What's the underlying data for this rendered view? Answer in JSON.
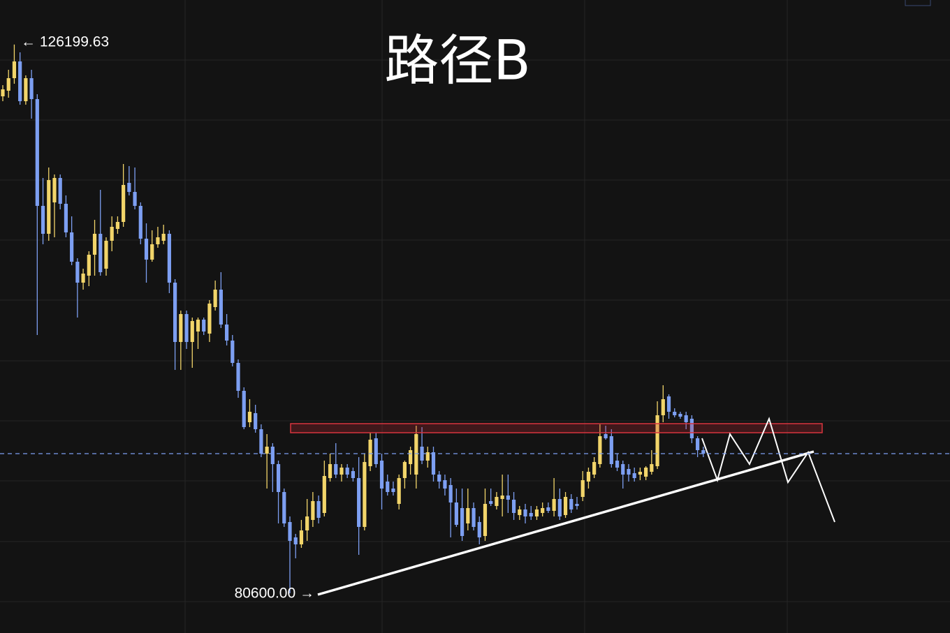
{
  "chart_data": {
    "type": "candlestick",
    "title": "路径B",
    "max_label": "← 126199.63",
    "min_label": "80600.00 →",
    "up_color": "#f2d56a",
    "down_color": "#7d9ff2",
    "ylim": [
      77294,
      129900
    ],
    "ohlc": [
      [
        121896,
        122824,
        121490,
        122476
      ],
      [
        122360,
        124100,
        121780,
        123404
      ],
      [
        123404,
        126199.63,
        122940,
        124796
      ],
      [
        124796,
        125550,
        121200,
        121490
      ],
      [
        121490,
        123636,
        121200,
        123404
      ],
      [
        123404,
        124100,
        120040,
        121664
      ],
      [
        121664,
        122070,
        102060,
        112790
      ],
      [
        112790,
        115110,
        109600,
        110470
      ],
      [
        110470,
        115980,
        109890,
        114936
      ],
      [
        113080,
        115400,
        110180,
        115110
      ],
      [
        115110,
        115400,
        112500,
        112964
      ],
      [
        112964,
        113660,
        110180,
        110586
      ],
      [
        110586,
        111920,
        107860,
        108150
      ],
      [
        108150,
        108440,
        103510,
        106410
      ],
      [
        106410,
        107570,
        105830,
        107164
      ],
      [
        106990,
        109020,
        106120,
        108730
      ],
      [
        108730,
        111630,
        106990,
        110470
      ],
      [
        110470,
        114124,
        106990,
        107280
      ],
      [
        107570,
        110180,
        106990,
        109890
      ],
      [
        109890,
        111920,
        109020,
        111050
      ],
      [
        110876,
        111920,
        110470,
        111456
      ],
      [
        111456,
        116270,
        111050,
        114530
      ],
      [
        114704,
        116096,
        113660,
        113950
      ],
      [
        113950,
        115980,
        112500,
        112790
      ],
      [
        112790,
        113080,
        109600,
        110064
      ],
      [
        110064,
        111340,
        106410,
        108324
      ],
      [
        108324,
        110760,
        108150,
        109600
      ],
      [
        109600,
        111050,
        109310,
        110180
      ],
      [
        109890,
        111224,
        109600,
        110470
      ],
      [
        110470,
        110760,
        105540,
        106410
      ],
      [
        106410,
        106700,
        99160,
        101480
      ],
      [
        101480,
        104090,
        99160,
        103800
      ],
      [
        103800,
        104090,
        100900,
        101480
      ],
      [
        101480,
        103510,
        99334,
        103220
      ],
      [
        102350,
        103510,
        100900,
        103336
      ],
      [
        103336,
        103510,
        102060,
        102350
      ],
      [
        102176,
        104960,
        101480,
        104670
      ],
      [
        104380,
        106584,
        104090,
        105830
      ],
      [
        105830,
        107280,
        102640,
        102930
      ],
      [
        102930,
        103800,
        101190,
        101596
      ],
      [
        101596,
        102060,
        99450,
        99740
      ],
      [
        99740,
        100030,
        96840,
        97420
      ],
      [
        97420,
        97710,
        94230,
        94404
      ],
      [
        94810,
        96724,
        94404,
        95680
      ],
      [
        95564,
        96260,
        93940,
        94230
      ],
      [
        94230,
        94636,
        91910,
        92200
      ],
      [
        92200,
        93824,
        89300,
        92780
      ],
      [
        92780,
        93070,
        89010,
        91330
      ],
      [
        91330,
        91620,
        86400,
        89010
      ],
      [
        89010,
        89300,
        86110,
        86400
      ],
      [
        86516,
        86980,
        80600,
        84950
      ],
      [
        85240,
        85530,
        83500,
        84660
      ],
      [
        84660,
        86690,
        84370,
        85820
      ],
      [
        85820,
        88430,
        84950,
        86980
      ],
      [
        86690,
        89010,
        86110,
        88256
      ],
      [
        88256,
        88720,
        86400,
        86864
      ],
      [
        87270,
        91620,
        86980,
        90344
      ],
      [
        90170,
        92200,
        89880,
        91330
      ],
      [
        91330,
        93070,
        90170,
        90460
      ],
      [
        90460,
        91330,
        89880,
        91040
      ],
      [
        91040,
        91330,
        90170,
        90460
      ],
      [
        90750,
        91040,
        89880,
        90170
      ],
      [
        90170,
        91910,
        83790,
        86110
      ],
      [
        86110,
        92200,
        85820,
        91504
      ],
      [
        91156,
        93940,
        90750,
        93360
      ],
      [
        93476,
        93940,
        91040,
        91330
      ],
      [
        91620,
        92200,
        87560,
        89300
      ],
      [
        89880,
        90460,
        88720,
        89010
      ],
      [
        89300,
        89880,
        88720,
        89010
      ],
      [
        88024,
        90460,
        87560,
        90170
      ],
      [
        90170,
        91620,
        89300,
        91504
      ],
      [
        91330,
        92780,
        90460,
        92490
      ],
      [
        90460,
        94520,
        89300,
        93824
      ],
      [
        92780,
        94404,
        91330,
        91620
      ],
      [
        91620,
        92780,
        91040,
        92316
      ],
      [
        92316,
        92780,
        89880,
        90460
      ],
      [
        90460,
        90750,
        89300,
        89880
      ],
      [
        89996,
        90460,
        88720,
        89300
      ],
      [
        89590,
        90170,
        85240,
        88140
      ],
      [
        88140,
        89300,
        86110,
        86284
      ],
      [
        87676,
        89300,
        84950,
        85356
      ],
      [
        86400,
        89300,
        85820,
        87676
      ],
      [
        87676,
        88140,
        85820,
        86110
      ],
      [
        86516,
        86980,
        84660,
        85240
      ],
      [
        85356,
        89300,
        84950,
        88024
      ],
      [
        88256,
        89300,
        87850,
        88024
      ],
      [
        87850,
        89010,
        87560,
        88604
      ],
      [
        88430,
        90460,
        86980,
        88720
      ],
      [
        88720,
        90460,
        87270,
        88372
      ],
      [
        88372,
        89010,
        86690,
        87270
      ],
      [
        87096,
        87850,
        86690,
        87560
      ],
      [
        87560,
        88024,
        86400,
        86980
      ],
      [
        87270,
        87850,
        86690,
        86980
      ],
      [
        86980,
        87850,
        86690,
        87560
      ],
      [
        87270,
        88140,
        86980,
        87676
      ],
      [
        87734,
        88140,
        87270,
        87444
      ],
      [
        87444,
        90170,
        86980,
        88430
      ],
      [
        88430,
        89300,
        86690,
        86980
      ],
      [
        87096,
        89010,
        86864,
        88604
      ],
      [
        88430,
        88836,
        87270,
        87560
      ],
      [
        88024,
        88604,
        87560,
        87850
      ],
      [
        88604,
        90750,
        88256,
        89996
      ],
      [
        89880,
        91040,
        89300,
        90692
      ],
      [
        90460,
        91910,
        90170,
        91504
      ],
      [
        91330,
        94636,
        91040,
        93650
      ],
      [
        93824,
        94520,
        93360,
        93476
      ],
      [
        93650,
        94230,
        91040,
        91330
      ],
      [
        91620,
        92200,
        90750,
        91040
      ],
      [
        91330,
        91620,
        89300,
        90460
      ],
      [
        90924,
        91330,
        89880,
        90460
      ],
      [
        90576,
        91040,
        89880,
        90170
      ],
      [
        90460,
        91040,
        89996,
        90692
      ],
      [
        90286,
        91156,
        89996,
        91040
      ],
      [
        90692,
        92490,
        90460,
        91330
      ],
      [
        91156,
        96550,
        90924,
        95390
      ],
      [
        95390,
        97884,
        94810,
        96724
      ],
      [
        96956,
        97130,
        95100,
        95680
      ],
      [
        95680,
        95970,
        95216,
        95390
      ],
      [
        95506,
        95680,
        95100,
        95274
      ],
      [
        95390,
        95680,
        94230,
        94810
      ],
      [
        95100,
        95390,
        93070,
        93476
      ],
      [
        93476,
        93650,
        91910,
        92490
      ],
      [
        92490,
        92780,
        91910,
        92200
      ]
    ]
  }
}
